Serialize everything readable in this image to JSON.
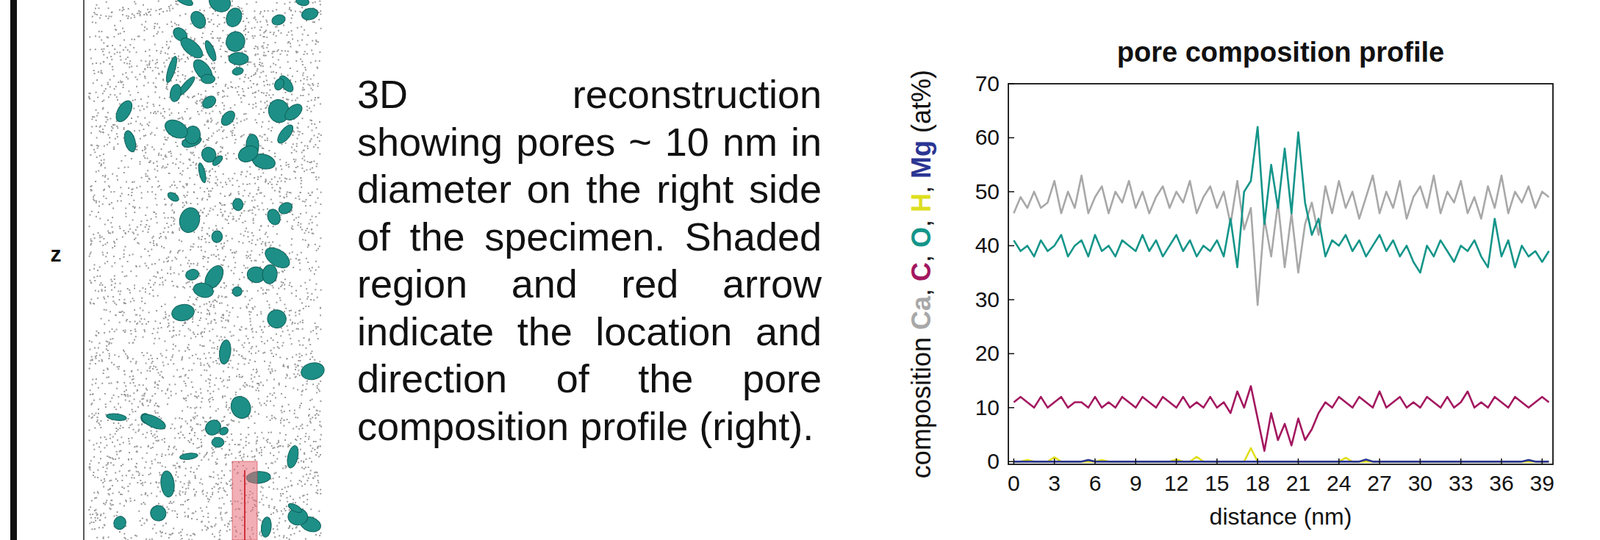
{
  "figure": {
    "axis_label": "z",
    "caption": "3D reconstruction showing pores ~ 10 nm in diameter on the right side of the specimen. Shaded region and red arrow indicate the location and direction of the pore composition profile (right)."
  },
  "chart_data": {
    "type": "line",
    "title": "pore composition profile",
    "x_label": "distance (nm)",
    "y_label": "composition Ca, C, O, H, Mg (at%)",
    "x": [
      0,
      0.5,
      1,
      1.5,
      2,
      2.5,
      3,
      3.5,
      4,
      4.5,
      5,
      5.5,
      6,
      6.5,
      7,
      7.5,
      8,
      8.5,
      9,
      9.5,
      10,
      10.5,
      11,
      11.5,
      12,
      12.5,
      13,
      13.5,
      14,
      14.5,
      15,
      15.5,
      16,
      16.5,
      17,
      17.5,
      18,
      18.5,
      19,
      19.5,
      20,
      20.5,
      21,
      21.5,
      22,
      22.5,
      23,
      23.5,
      24,
      24.5,
      25,
      25.5,
      26,
      26.5,
      27,
      27.5,
      28,
      28.5,
      29,
      29.5,
      30,
      30.5,
      31,
      31.5,
      32,
      32.5,
      33,
      33.5,
      34,
      34.5,
      35,
      35.5,
      36,
      36.5,
      37,
      37.5,
      38,
      38.5,
      39,
      39.5
    ],
    "series": [
      {
        "name": "Ca",
        "color": "#a8a8a8",
        "values": [
          46,
          49,
          47,
          50,
          47,
          48,
          52,
          46,
          50,
          47,
          53,
          46,
          49,
          51,
          46,
          50,
          48,
          52,
          47,
          50,
          46,
          49,
          51,
          47,
          50,
          48,
          52,
          46,
          49,
          51,
          47,
          50,
          44,
          52,
          43,
          47,
          29,
          45,
          38,
          48,
          36,
          46,
          35,
          44,
          48,
          42,
          51,
          46,
          52,
          47,
          50,
          45,
          49,
          53,
          46,
          50,
          47,
          52,
          45,
          49,
          51,
          47,
          53,
          46,
          50,
          48,
          52,
          46,
          49,
          45,
          51,
          47,
          53,
          46,
          50,
          48,
          51,
          47,
          50,
          49
        ]
      },
      {
        "name": "O",
        "color": "#14958a",
        "values": [
          41,
          39,
          40,
          38,
          41,
          39,
          40,
          42,
          38,
          40,
          41,
          38,
          42,
          39,
          40,
          38,
          41,
          40,
          39,
          42,
          39,
          41,
          38,
          40,
          42,
          39,
          41,
          38,
          40,
          39,
          41,
          38,
          45,
          36,
          50,
          52,
          62,
          44,
          55,
          47,
          58,
          46,
          61,
          48,
          42,
          45,
          38,
          41,
          40,
          42,
          39,
          41,
          38,
          40,
          42,
          39,
          41,
          38,
          40,
          37,
          35,
          40,
          38,
          41,
          39,
          37,
          40,
          39,
          41,
          38,
          36,
          45,
          38,
          41,
          36,
          40,
          38,
          39,
          37,
          39
        ]
      },
      {
        "name": "C",
        "color": "#a3175f",
        "values": [
          11,
          12,
          11,
          10,
          12,
          10,
          11,
          12,
          10,
          11,
          11,
          10,
          12,
          10,
          11,
          10,
          12,
          11,
          10,
          12,
          11,
          10,
          12,
          11,
          10,
          12,
          10,
          11,
          10,
          12,
          10,
          11,
          9,
          13,
          10,
          14,
          8,
          2,
          9,
          4,
          7,
          3,
          8,
          4,
          6,
          9,
          11,
          10,
          12,
          11,
          10,
          12,
          11,
          10,
          13,
          10,
          11,
          12,
          10,
          11,
          10,
          12,
          11,
          10,
          12,
          10,
          11,
          13,
          10,
          11,
          10,
          12,
          11,
          10,
          12,
          11,
          10,
          11,
          12,
          11
        ]
      },
      {
        "name": "H",
        "color": "#dede1e",
        "values": [
          0,
          0,
          0.3,
          0,
          0,
          0,
          0.8,
          0,
          0,
          0,
          0,
          0,
          0,
          0.3,
          0,
          0,
          0,
          0,
          0,
          0,
          0,
          0,
          0,
          0,
          0.4,
          0,
          0,
          0.9,
          0,
          0,
          0,
          0,
          0,
          0,
          0,
          2.5,
          0,
          0,
          0,
          0,
          0,
          0,
          0,
          0,
          0,
          0,
          0,
          0,
          0,
          0.7,
          0,
          0,
          0,
          0,
          0,
          0,
          0,
          0,
          0,
          0,
          0,
          0,
          0,
          0,
          0,
          0,
          0,
          0,
          0,
          0,
          0,
          0,
          0,
          0,
          0,
          0,
          0,
          0,
          0,
          0
        ]
      },
      {
        "name": "Mg",
        "color": "#2b3593",
        "values": [
          0,
          0,
          0,
          0,
          0,
          0,
          0,
          0,
          0,
          0,
          0,
          0.3,
          0,
          0,
          0,
          0,
          0,
          0,
          0,
          0,
          0,
          0,
          0,
          0,
          0,
          0,
          0,
          0,
          0,
          0,
          0,
          0,
          0,
          0,
          0,
          0,
          0,
          0,
          0,
          0,
          0,
          0,
          0,
          0,
          0,
          0,
          0,
          0,
          0,
          0,
          0,
          0,
          0.4,
          0,
          0,
          0,
          0,
          0,
          0,
          0,
          0,
          0,
          0,
          0,
          0,
          0,
          0,
          0,
          0,
          0,
          0,
          0,
          0,
          0,
          0,
          0,
          0.3,
          0,
          0,
          0
        ]
      }
    ],
    "xlim": [
      -0.4,
      39.8
    ],
    "ylim": [
      -0.5,
      70
    ],
    "xticks": [
      0,
      3,
      6,
      9,
      12,
      15,
      18,
      21,
      24,
      27,
      30,
      33,
      36,
      39
    ],
    "yticks": [
      0,
      10,
      20,
      30,
      40,
      50,
      60,
      70
    ],
    "grid": false
  }
}
